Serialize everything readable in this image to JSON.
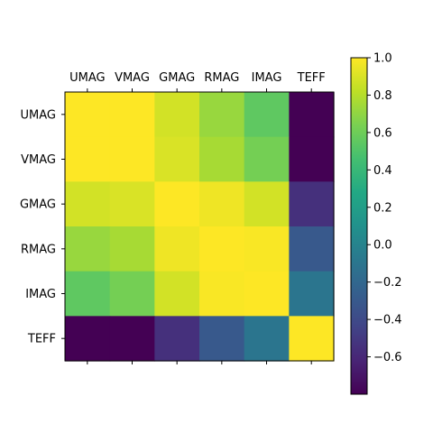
{
  "chart_data": {
    "type": "heatmap",
    "title": "",
    "xlabel": "",
    "ylabel": "",
    "x_categories": [
      "UMAG",
      "VMAG",
      "GMAG",
      "RMAG",
      "IMAG",
      "TEFF"
    ],
    "y_categories": [
      "UMAG",
      "VMAG",
      "GMAG",
      "RMAG",
      "IMAG",
      "TEFF"
    ],
    "x_ticks_top": true,
    "values": [
      [
        1.0,
        1.0,
        0.88,
        0.72,
        0.55,
        -0.8
      ],
      [
        1.0,
        1.0,
        0.9,
        0.76,
        0.62,
        -0.8
      ],
      [
        0.88,
        0.9,
        1.0,
        0.96,
        0.88,
        -0.55
      ],
      [
        0.72,
        0.76,
        0.96,
        1.0,
        0.99,
        -0.3
      ],
      [
        0.55,
        0.62,
        0.88,
        0.99,
        1.0,
        -0.1
      ],
      [
        -0.8,
        -0.8,
        -0.55,
        -0.3,
        -0.1,
        1.0
      ]
    ],
    "colorbar": {
      "colormap": "viridis",
      "vmin": -0.8,
      "vmax": 1.0,
      "ticks": [
        1.0,
        0.8,
        0.6,
        0.4,
        0.2,
        0.0,
        -0.2,
        -0.4,
        -0.6
      ],
      "tick_labels": [
        "1.0",
        "0.8",
        "0.6",
        "0.4",
        "0.2",
        "0.0",
        "−0.2",
        "−0.4",
        "−0.6"
      ]
    },
    "grid": false
  }
}
